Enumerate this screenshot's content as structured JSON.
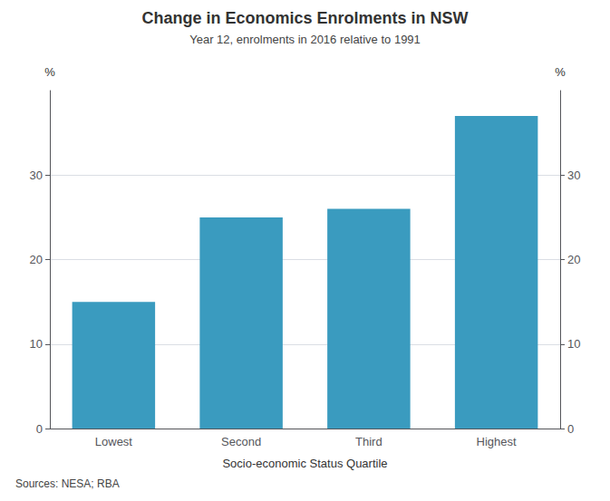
{
  "chart_data": {
    "type": "bar",
    "title": "Change in Economics Enrolments in NSW",
    "subtitle": "Year 12, enrolments in 2016 relative to 1991",
    "categories": [
      "Lowest",
      "Second",
      "Third",
      "Highest"
    ],
    "values": [
      15.0,
      25.0,
      26.0,
      37.0
    ],
    "color": "#3a9bbf",
    "xlabel": "Socio-economic Status Quartile",
    "ylabel": "%",
    "y2label": "%",
    "ylim": [
      0,
      40
    ],
    "yticks": [
      0,
      10,
      20,
      30
    ],
    "y2lim": [
      0,
      40
    ],
    "y2ticks": [
      0,
      10,
      20,
      30
    ],
    "grid": true,
    "source": "Sources: NESA; RBA"
  }
}
